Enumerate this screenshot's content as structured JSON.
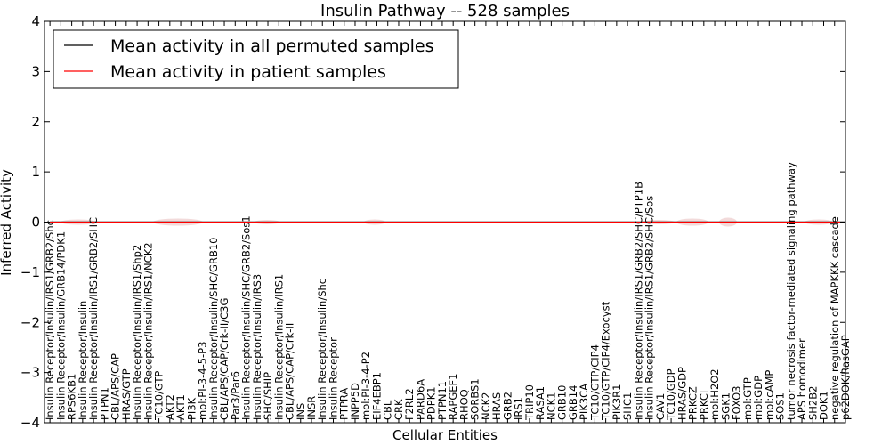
{
  "chart_data": {
    "type": "line",
    "title": "Insulin Pathway -- 528 samples",
    "xlabel": "Cellular Entities",
    "ylabel": "Inferred Activity",
    "ylim": [
      -4,
      4
    ],
    "yticks": [
      "4",
      "3",
      "2",
      "1",
      "0",
      "−1",
      "−2",
      "−3",
      "−4"
    ],
    "ytick_values": [
      4,
      3,
      2,
      1,
      0,
      -1,
      -2,
      -3,
      -4
    ],
    "legend_position": "top-left",
    "series": [
      {
        "name": "Mean activity in all permuted samples",
        "color": "#000000",
        "value": 0.0
      },
      {
        "name": "Mean activity in patient samples",
        "color": "#ff0000",
        "value": 0.0
      }
    ],
    "categories": [
      "Insulin Receptor/Insulin/IRS1/GRB2/Shc",
      "Insulin Receptor/Insulin/GRB14/PDK1",
      "RPS6KB1",
      "Insulin Receptor/Insulin",
      "Insulin Receptor/Insulin/IRS1/GRB2/SHC",
      "PTPN1",
      "CBL/APS/CAP",
      "HRAS/GTP",
      "Insulin Receptor/Insulin/IRS1/Shp2",
      "Insulin Receptor/Insulin/IRS1/NCK2",
      "TC10/GTP",
      "AKT2",
      "AKT1",
      "PI3K",
      "mol:PI-3-4-5-P3",
      "Insulin Receptor/Insulin/SHC/GRB10",
      "CBL/APS/CAP/Crk-II/C3G",
      "Par3/Par6",
      "Insulin Receptor/Insulin/SHC/GRB2/Sos1",
      "Insulin Receptor/Insulin/IRS3",
      "SHC/SHIP",
      "Insulin Receptor/Insulin/IRS1",
      "CBL/APS/CAP/Crk-II",
      "INS",
      "INSR",
      "Insulin Receptor/Insulin/Shc",
      "Insulin Receptor",
      "PTPRA",
      "INPP5D",
      "mol:PI-3-4-P2",
      "EIF4EBP1",
      "CBL",
      "CRK",
      "F2RL2",
      "PARD6A",
      "PDPK1",
      "PTPN11",
      "RAPGEF1",
      "RHOQ",
      "SORBS1",
      "NCK2",
      "HRAS",
      "GRB2",
      "IRS1",
      "TRIP10",
      "RASA1",
      "NCK1",
      "GRB10",
      "GRB14",
      "PIK3CA",
      "TC10/GTP/CIP4",
      "TC10/GTP/CIP4/Exocyst",
      "PIK3R1",
      "SHC1",
      "Insulin Receptor/Insulin/IRS1/GRB2/SHC/PTP1B",
      "Insulin Receptor/Insulin/IRS1/GRB2/SHC/Sos",
      "CAV1",
      "TC10/GDP",
      "HRAS/GDP",
      "PRKCZ",
      "PRKCI",
      "mol:H2O2",
      "SGK1",
      "FOXO3",
      "mol:GTP",
      "mol:GDP",
      "mol:cAMP",
      "SOS1",
      "tumor necrosis factor-mediated signaling pathway",
      "APS homodimer",
      "SH2B2",
      "DOK1",
      "negative regulation of MAPKKK cascade",
      "p62DOK/RasGAP"
    ]
  }
}
